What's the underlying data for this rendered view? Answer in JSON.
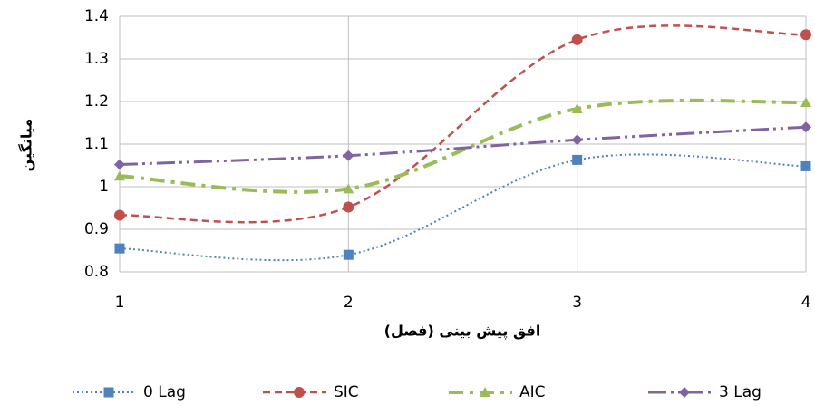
{
  "chart_data": {
    "type": "line",
    "x_label": "افق پیش بینی (فصل)",
    "y_label": "میانگین",
    "x": [
      1,
      2,
      3,
      4
    ],
    "xlim": [
      1,
      4
    ],
    "xticks": [
      1,
      2,
      3,
      4
    ],
    "ylim": [
      0.8,
      1.4
    ],
    "yticks": [
      0.8,
      0.9,
      1,
      1.1,
      1.2,
      1.3,
      1.4
    ],
    "grid": true,
    "smooth": true,
    "legend": "bottom",
    "series": [
      {
        "name": "0 Lag",
        "color": "#4f81bd",
        "marker": "square",
        "line_style": "dotted",
        "values": [
          0.855,
          0.84,
          1.063,
          1.048
        ]
      },
      {
        "name": "SIC",
        "color": "#c0504d",
        "marker": "circle",
        "line_style": "dashed",
        "values": [
          0.933,
          0.952,
          1.345,
          1.357
        ]
      },
      {
        "name": "AIC",
        "color": "#9bbb59",
        "marker": "triangle",
        "line_style": "long-dash-dot",
        "values": [
          1.025,
          0.995,
          1.183,
          1.198
        ]
      },
      {
        "name": "3 Lag",
        "color": "#8064a2",
        "marker": "diamond",
        "line_style": "dash-dot-dot",
        "values": [
          1.052,
          1.073,
          1.11,
          1.14
        ]
      }
    ]
  }
}
